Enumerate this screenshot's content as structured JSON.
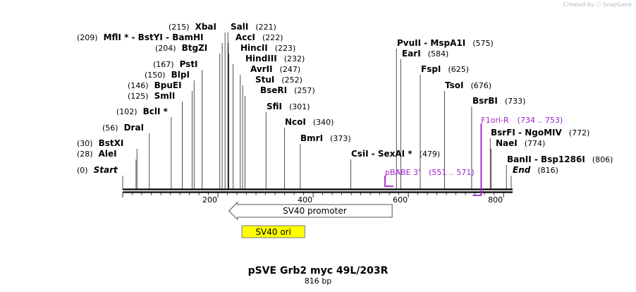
{
  "header": {
    "created_by": "Created by ⬡ SnapGene"
  },
  "map": {
    "title": "pSVE Grb2 myc 49L/203R",
    "length_label": "816 bp",
    "ruler": {
      "ticks": [
        "200",
        "400",
        "600",
        "800"
      ]
    },
    "features": [
      {
        "id": "sv40-promoter",
        "label": "SV40 promoter",
        "type": "promoter-arrow",
        "direction": "reverse",
        "start": 235,
        "end": 566,
        "color": "#ffffff"
      },
      {
        "id": "sv40-ori",
        "label": "SV40 ori",
        "type": "box",
        "start": 249,
        "end": 384,
        "color": "#ffff00"
      }
    ],
    "primers": [
      {
        "id": "pbabe3",
        "name": "pBABE 3'",
        "range": "(551 .. 571)",
        "start": 551,
        "end": 571,
        "color": "#a020c8"
      },
      {
        "id": "f1ori-r",
        "name": "F1ori-R",
        "range": "(734 .. 753)",
        "start": 734,
        "end": 753,
        "color": "#a020c8"
      }
    ],
    "sites": [
      {
        "pos": "(0)",
        "name": "Start",
        "italic": true,
        "bp": 0
      },
      {
        "pos": "(28)",
        "name": "AleI",
        "bp": 28
      },
      {
        "pos": "(30)",
        "name": "BstXI",
        "bp": 30
      },
      {
        "pos": "(56)",
        "name": "DraI",
        "bp": 56
      },
      {
        "pos": "(102)",
        "name": "BclI *",
        "bp": 102
      },
      {
        "pos": "(125)",
        "name": "SmlI",
        "bp": 125
      },
      {
        "pos": "(146)",
        "name": "BpuEI",
        "bp": 146
      },
      {
        "pos": "(150)",
        "name": "BlpI",
        "bp": 150
      },
      {
        "pos": "(167)",
        "name": "PstI",
        "bp": 167
      },
      {
        "pos": "(204)",
        "name": "BtgZI",
        "bp": 204
      },
      {
        "pos": "(209)",
        "name": "MflI * - BstYI - BamHI",
        "bp": 209
      },
      {
        "pos": "(215)",
        "name": "XbaI",
        "bp": 215
      },
      {
        "pos": "(221)",
        "name": "SalI",
        "bp": 221
      },
      {
        "pos": "(222)",
        "name": "AccI",
        "bp": 222
      },
      {
        "pos": "(223)",
        "name": "HincII",
        "bp": 223
      },
      {
        "pos": "(232)",
        "name": "HindIII",
        "bp": 232
      },
      {
        "pos": "(247)",
        "name": "AvrII",
        "bp": 247
      },
      {
        "pos": "(252)",
        "name": "StuI",
        "bp": 252
      },
      {
        "pos": "(257)",
        "name": "BseRI",
        "bp": 257
      },
      {
        "pos": "(301)",
        "name": "SfiI",
        "bp": 301
      },
      {
        "pos": "(340)",
        "name": "NcoI",
        "bp": 340
      },
      {
        "pos": "(373)",
        "name": "BmrI",
        "bp": 373
      },
      {
        "pos": "(479)",
        "name": "CsiI - SexAI *",
        "bp": 479
      },
      {
        "pos": "(575)",
        "name": "PvuII - MspA1I",
        "bp": 575
      },
      {
        "pos": "(584)",
        "name": "EarI",
        "bp": 584
      },
      {
        "pos": "(625)",
        "name": "FspI",
        "bp": 625
      },
      {
        "pos": "(676)",
        "name": "TsoI",
        "bp": 676
      },
      {
        "pos": "(733)",
        "name": "BsrBI",
        "bp": 733
      },
      {
        "pos": "(772)",
        "name": "BsrFI - NgoMIV",
        "bp": 772
      },
      {
        "pos": "(774)",
        "name": "NaeI",
        "bp": 774
      },
      {
        "pos": "(806)",
        "name": "BanII - Bsp1286I",
        "bp": 806
      },
      {
        "pos": "(816)",
        "name": "End",
        "italic": true,
        "bp": 816
      }
    ]
  }
}
